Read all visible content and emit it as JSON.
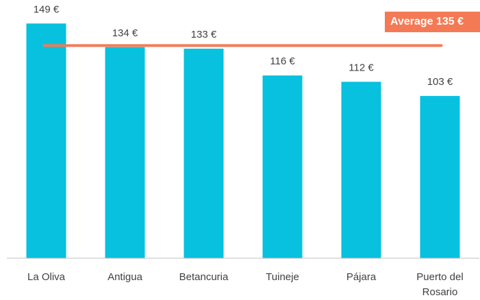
{
  "chart_data": {
    "type": "bar",
    "categories": [
      "La Oliva",
      "Antigua",
      "Betancuria",
      "Tuineje",
      "Pájara",
      "Puerto del Rosario"
    ],
    "values": [
      149,
      134,
      133,
      116,
      112,
      103
    ],
    "value_labels": [
      "149 €",
      "134 €",
      "133 €",
      "116 €",
      "112 €",
      "103 €"
    ],
    "color": "#07c1df",
    "ylim": [
      0,
      160
    ],
    "average": {
      "value": 135,
      "label": "Average 135 €",
      "color": "#f47a55"
    }
  }
}
